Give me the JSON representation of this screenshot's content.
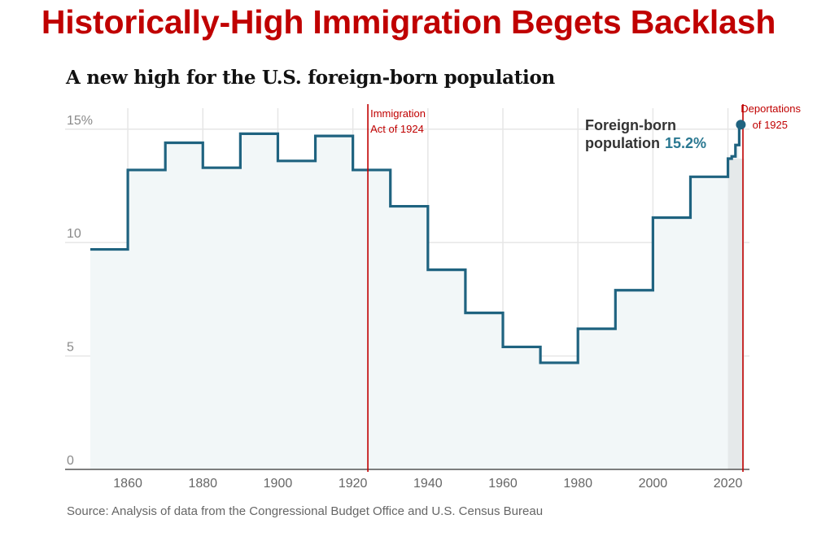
{
  "headline": "Historically-High Immigration Begets Backlash",
  "colors": {
    "headline": "#c00000",
    "series": "#1f6380",
    "fill": "#f2f7f8",
    "annotation": "#c00000",
    "value_label": "#2a7891"
  },
  "chart_data": {
    "type": "line",
    "step": "post",
    "title": "A new high for the U.S. foreign-born population",
    "xlabel": "",
    "ylabel": "",
    "xlim": [
      1850,
      2024
    ],
    "ylim": [
      0,
      17
    ],
    "y_ticks": [
      {
        "value": 0,
        "label": "0"
      },
      {
        "value": 5,
        "label": "5"
      },
      {
        "value": 10,
        "label": "10"
      },
      {
        "value": 15,
        "label": "15%"
      }
    ],
    "x_ticks": [
      {
        "value": 1860,
        "label": "1860"
      },
      {
        "value": 1880,
        "label": "1880"
      },
      {
        "value": 1900,
        "label": "1900"
      },
      {
        "value": 1920,
        "label": "1920"
      },
      {
        "value": 1940,
        "label": "1940"
      },
      {
        "value": 1960,
        "label": "1960"
      },
      {
        "value": 1980,
        "label": "1980"
      },
      {
        "value": 2000,
        "label": "2000"
      },
      {
        "value": 2020,
        "label": "2020"
      }
    ],
    "series": [
      {
        "name": "Foreign-born population",
        "x": [
          1850,
          1860,
          1870,
          1880,
          1890,
          1900,
          1910,
          1920,
          1930,
          1940,
          1950,
          1960,
          1970,
          1980,
          1990,
          2000,
          2010,
          2020,
          2021,
          2022,
          2023
        ],
        "values": [
          9.7,
          13.2,
          14.4,
          13.3,
          14.8,
          13.6,
          14.7,
          13.2,
          11.6,
          8.8,
          6.9,
          5.4,
          4.7,
          6.2,
          7.9,
          11.1,
          12.9,
          13.7,
          13.8,
          14.3,
          15.2
        ]
      }
    ],
    "end_label": {
      "text_line1": "Foreign-born",
      "text_line2": "population",
      "value": "15.2%"
    },
    "annotations": [
      {
        "x": 1924,
        "line1": "Immigration",
        "line2": "Act of 1924"
      },
      {
        "x": 2024,
        "line1": "Deportations",
        "line2": "of 1925"
      }
    ],
    "source": "Source: Analysis of data from the Congressional Budget Office and U.S. Census Bureau"
  }
}
